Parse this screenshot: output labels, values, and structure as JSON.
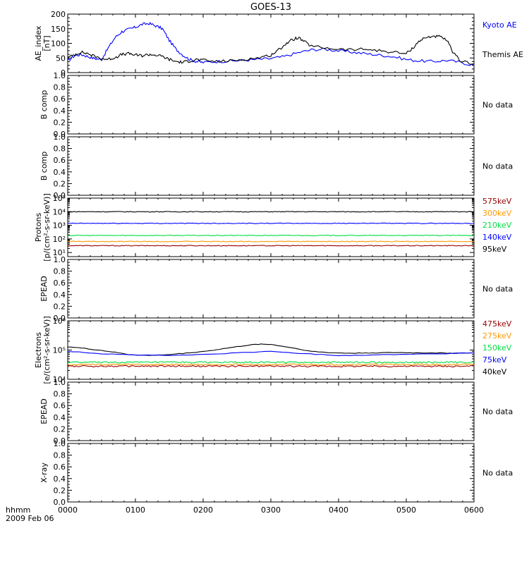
{
  "title": "GOES-13",
  "x_axis": {
    "ticks": [
      "0000",
      "0100",
      "0200",
      "0300",
      "0400",
      "0500",
      "0600"
    ],
    "corner_label_1": "hhmm",
    "corner_label_2": "2009 Feb 06"
  },
  "no_data_label": "No data",
  "chart_data": [
    {
      "type": "line",
      "ylabel_lines": [
        "AE_index",
        "[nT]"
      ],
      "y_ticks": [
        "0",
        "50",
        "100",
        "150",
        "200"
      ],
      "ylim": [
        0,
        200
      ],
      "x_hours": [
        0,
        6
      ],
      "series": [
        {
          "name": "Kyoto AE",
          "color": "#0000ff",
          "x": [
            0,
            0.1,
            0.2,
            0.3,
            0.4,
            0.5,
            0.6,
            0.7,
            0.8,
            0.9,
            1.0,
            1.1,
            1.2,
            1.3,
            1.4,
            1.5,
            1.6,
            1.7,
            1.8,
            1.9,
            2.0,
            2.2,
            2.4,
            2.6,
            2.8,
            3.0,
            3.2,
            3.4,
            3.6,
            3.8,
            4.0,
            4.2,
            4.4,
            4.6,
            4.8,
            5.0,
            5.2,
            5.4,
            5.6,
            5.8,
            6.0
          ],
          "values": [
            40,
            58,
            62,
            55,
            48,
            45,
            85,
            120,
            140,
            148,
            155,
            165,
            168,
            160,
            150,
            110,
            80,
            60,
            45,
            38,
            35,
            38,
            40,
            42,
            45,
            48,
            55,
            68,
            78,
            80,
            75,
            70,
            65,
            60,
            55,
            45,
            40,
            38,
            42,
            35,
            25
          ]
        },
        {
          "name": "Themis AE",
          "color": "#000000",
          "x": [
            0,
            0.1,
            0.2,
            0.3,
            0.4,
            0.5,
            0.6,
            0.7,
            0.8,
            0.9,
            1.0,
            1.1,
            1.2,
            1.3,
            1.4,
            1.5,
            1.6,
            1.7,
            1.8,
            1.9,
            2.0,
            2.2,
            2.4,
            2.6,
            2.8,
            3.0,
            3.1,
            3.2,
            3.3,
            3.4,
            3.5,
            3.6,
            3.8,
            4.0,
            4.2,
            4.4,
            4.6,
            4.8,
            5.0,
            5.1,
            5.2,
            5.3,
            5.4,
            5.5,
            5.6,
            5.7,
            5.8,
            6.0
          ],
          "values": [
            50,
            62,
            70,
            65,
            55,
            48,
            45,
            52,
            62,
            65,
            60,
            58,
            62,
            60,
            55,
            45,
            38,
            35,
            40,
            45,
            42,
            38,
            40,
            45,
            50,
            60,
            75,
            95,
            110,
            120,
            105,
            90,
            85,
            80,
            78,
            80,
            75,
            70,
            65,
            85,
            110,
            120,
            125,
            122,
            110,
            65,
            40,
            30
          ]
        }
      ],
      "legend": [
        {
          "label": "Kyoto AE",
          "color": "#0000ff"
        },
        {
          "label": "Themis AE",
          "color": "#000000"
        }
      ]
    },
    {
      "type": "line",
      "ylabel_lines": [
        "B comp"
      ],
      "y_ticks": [
        "0.0",
        "0.2",
        "0.4",
        "0.6",
        "0.8",
        "1.0"
      ],
      "ylim": [
        0,
        1
      ],
      "series": [],
      "no_data": true
    },
    {
      "type": "line",
      "ylabel_lines": [
        "B comp"
      ],
      "y_ticks": [
        "0.0",
        "0.2",
        "0.4",
        "0.6",
        "0.8",
        "1.0"
      ],
      "ylim": [
        0,
        1
      ],
      "series": [],
      "no_data": true
    },
    {
      "type": "line",
      "log_scale": true,
      "ylabel_lines": [
        "Protons",
        "[p/(cm²-s-sr-keV)]"
      ],
      "y_ticks": [
        "10¹",
        "10²",
        "10³",
        "10⁴",
        "10⁵"
      ],
      "ylim_exp": [
        0.7,
        5
      ],
      "series": [
        {
          "name": "95keV",
          "color": "#000000",
          "level": 10000
        },
        {
          "name": "140keV",
          "color": "#0000ff",
          "level": 1400
        },
        {
          "name": "210keV",
          "color": "#00dd44",
          "level": 180
        },
        {
          "name": "300keV",
          "color": "#ff9900",
          "level": 65
        },
        {
          "name": "575keV",
          "color": "#990000",
          "level": 32
        }
      ],
      "legend": [
        {
          "label": "575keV",
          "color": "#990000"
        },
        {
          "label": "300keV",
          "color": "#ff9900"
        },
        {
          "label": "210keV",
          "color": "#00dd44"
        },
        {
          "label": "140keV",
          "color": "#0000ff"
        },
        {
          "label": "95keV",
          "color": "#000000"
        }
      ]
    },
    {
      "type": "line",
      "ylabel_lines": [
        "EPEAD"
      ],
      "y_ticks": [
        "0.0",
        "0.2",
        "0.4",
        "0.6",
        "0.8",
        "1.0"
      ],
      "ylim": [
        0,
        1
      ],
      "series": [],
      "no_data": true
    },
    {
      "type": "line",
      "log_scale": true,
      "ylabel_lines": [
        "Electrons",
        "[e/(cm²-s-sr-keV)]"
      ],
      "y_ticks": [
        "10⁴",
        "10⁵",
        "10⁶"
      ],
      "ylim_exp": [
        4,
        6
      ],
      "series": [
        {
          "name": "40keV",
          "color": "#000000",
          "x": [
            0,
            0.3,
            0.6,
            0.9,
            1.2,
            1.5,
            1.8,
            2.1,
            2.4,
            2.7,
            2.85,
            3.0,
            3.3,
            3.6,
            3.9,
            4.2,
            4.5,
            4.8,
            5.1,
            5.4,
            5.7,
            6.0
          ],
          "values": [
            130000,
            110000,
            90000,
            70000,
            65000,
            70000,
            80000,
            95000,
            120000,
            150000,
            160000,
            155000,
            120000,
            90000,
            80000,
            78000,
            80000,
            82000,
            80000,
            80000,
            78000,
            80000
          ]
        },
        {
          "name": "75keV",
          "color": "#0000ff",
          "x": [
            0,
            0.5,
            1.0,
            1.5,
            2.0,
            2.5,
            3.0,
            3.5,
            4.0,
            4.5,
            5.0,
            5.5,
            6.0
          ],
          "values": [
            90000,
            75000,
            68000,
            65000,
            70000,
            80000,
            90000,
            75000,
            65000,
            68000,
            72000,
            75000,
            80000
          ]
        },
        {
          "name": "150keV",
          "color": "#00dd44",
          "level": 38000
        },
        {
          "name": "275keV",
          "color": "#ff9900",
          "level": 32000
        },
        {
          "name": "475keV",
          "color": "#990000",
          "level": 28000
        }
      ],
      "legend": [
        {
          "label": "475keV",
          "color": "#990000"
        },
        {
          "label": "275keV",
          "color": "#ff9900"
        },
        {
          "label": "150keV",
          "color": "#00dd44"
        },
        {
          "label": "75keV",
          "color": "#0000ff"
        },
        {
          "label": "40keV",
          "color": "#000000"
        }
      ]
    },
    {
      "type": "line",
      "ylabel_lines": [
        "EPEAD"
      ],
      "y_ticks": [
        "0.0",
        "0.2",
        "0.4",
        "0.6",
        "0.8",
        "1.0"
      ],
      "ylim": [
        0,
        1
      ],
      "series": [],
      "no_data": true
    },
    {
      "type": "line",
      "ylabel_lines": [
        "X-ray"
      ],
      "y_ticks": [
        "0.0",
        "0.2",
        "0.4",
        "0.6",
        "0.8",
        "1.0"
      ],
      "ylim": [
        0,
        1
      ],
      "series": [],
      "no_data": true
    }
  ]
}
